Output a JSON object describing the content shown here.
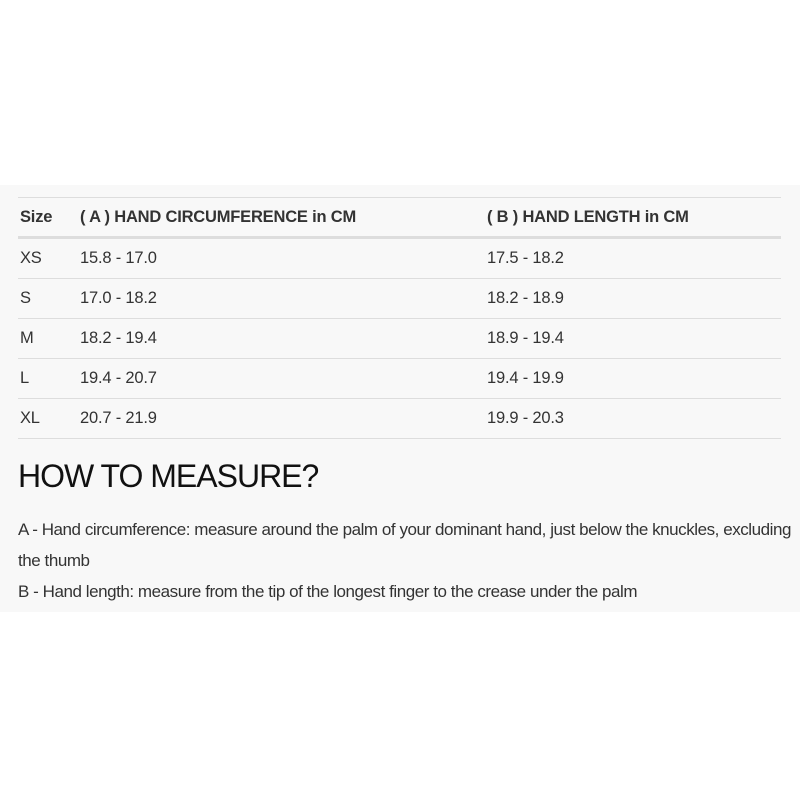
{
  "table": {
    "headers": [
      "Size",
      "( A ) HAND CIRCUMFERENCE in CM",
      "( B ) HAND LENGTH in CM"
    ],
    "rows": [
      [
        "XS",
        "15.8 - 17.0",
        "17.5 - 18.2"
      ],
      [
        "S",
        "17.0 - 18.2",
        "18.2 - 18.9"
      ],
      [
        "M",
        "18.2 - 19.4",
        "18.9 - 19.4"
      ],
      [
        "L",
        "19.4 - 20.7",
        "19.4 - 19.9"
      ],
      [
        "XL",
        "20.7 - 21.9",
        "19.9 - 20.3"
      ]
    ]
  },
  "heading": "HOW TO MEASURE?",
  "instructions": [
    "A - Hand circumference: measure around the palm of your dominant hand, just below the knuckles, excluding the thumb",
    "B - Hand length: measure from the tip of the longest finger to the crease under the palm"
  ]
}
